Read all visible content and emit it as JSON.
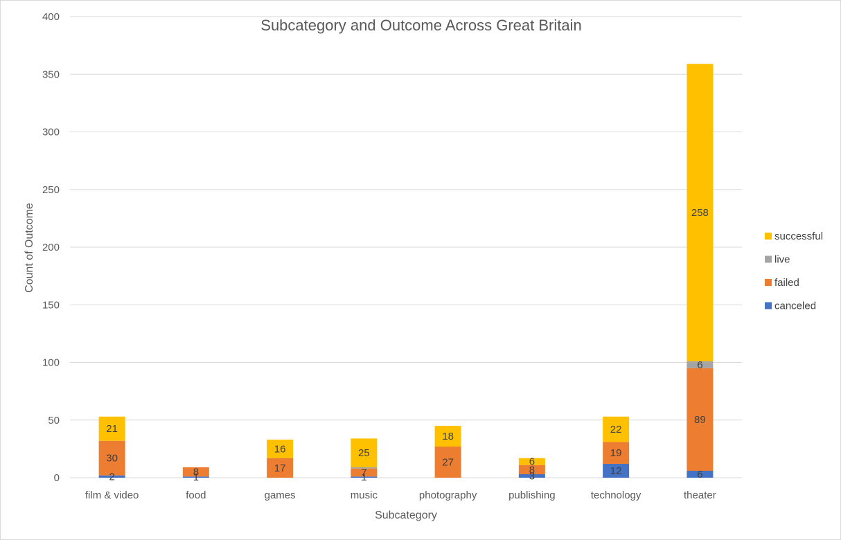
{
  "chart_data": {
    "type": "bar",
    "stacked": true,
    "title": "Subcategory and Outcome Across Great Britain",
    "xlabel": "Subcategory",
    "ylabel": "Count of Outcome",
    "categories": [
      "film & video",
      "food",
      "games",
      "music",
      "photography",
      "publishing",
      "technology",
      "theater"
    ],
    "ylim": [
      0,
      400
    ],
    "yticks": [
      0,
      50,
      100,
      150,
      200,
      250,
      300,
      350,
      400
    ],
    "grid": true,
    "legend_position": "right",
    "series": [
      {
        "name": "canceled",
        "color": "#4472C4",
        "values": [
          2,
          1,
          0,
          1,
          0,
          3,
          12,
          6
        ],
        "labels": [
          "2",
          "1",
          "",
          "1",
          "",
          "3",
          "12",
          "6"
        ]
      },
      {
        "name": "failed",
        "color": "#ED7D31",
        "values": [
          30,
          8,
          17,
          7,
          27,
          8,
          19,
          89
        ],
        "labels": [
          "30",
          "8",
          "17",
          "7",
          "27",
          "8",
          "19",
          "89"
        ]
      },
      {
        "name": "live",
        "color": "#A5A5A5",
        "values": [
          0,
          0,
          0,
          1,
          0,
          0,
          0,
          6
        ],
        "labels": [
          "",
          "",
          "",
          "",
          "",
          "",
          "",
          "6"
        ]
      },
      {
        "name": "successful",
        "color": "#FFC000",
        "values": [
          21,
          0,
          16,
          25,
          18,
          6,
          22,
          258
        ],
        "labels": [
          "21",
          "",
          "16",
          "25",
          "18",
          "6",
          "22",
          "258"
        ]
      }
    ]
  }
}
